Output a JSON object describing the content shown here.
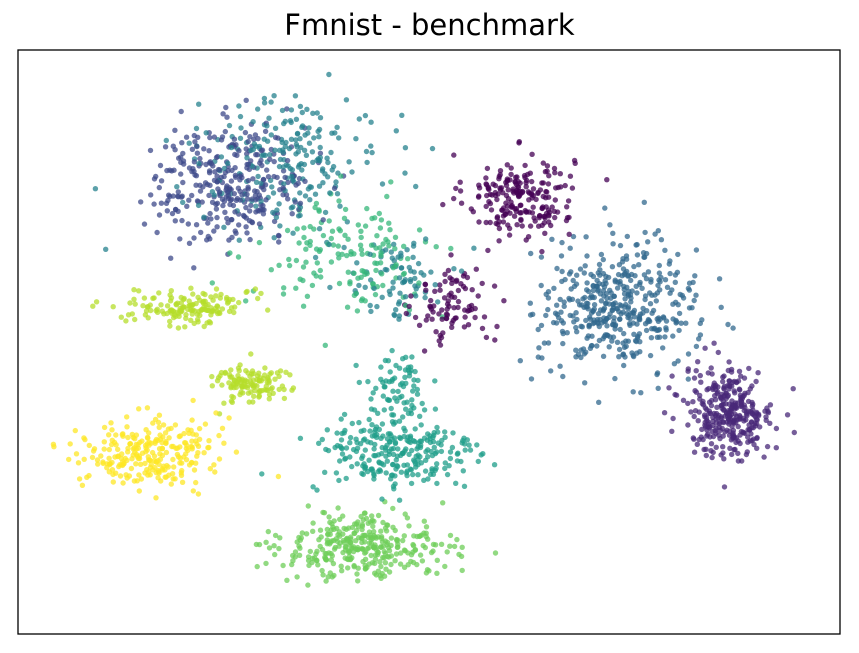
{
  "chart_data": {
    "type": "scatter",
    "title": "Fmnist - benchmark",
    "xlabel": "",
    "ylabel": "",
    "axes_ticks_visible": false,
    "grid": false,
    "legend": "none",
    "xlim": [
      0,
      100
    ],
    "ylim": [
      0,
      100
    ],
    "colormap": "viridis",
    "point_opacity": 0.75,
    "clusters": [
      {
        "class": 0,
        "color": "#440154",
        "center": [
          61,
          75
        ],
        "spread": [
          5.5,
          6.0
        ],
        "count": 210
      },
      {
        "class": 0,
        "color": "#440154",
        "center": [
          53,
          56
        ],
        "spread": [
          4.0,
          5.5
        ],
        "count": 90
      },
      {
        "class": 1,
        "color": "#482878",
        "center": [
          86.5,
          38
        ],
        "spread": [
          4.5,
          6.5
        ],
        "count": 330
      },
      {
        "class": 2,
        "color": "#3e4989",
        "center": [
          26,
          77
        ],
        "spread": [
          8.0,
          8.5
        ],
        "count": 320
      },
      {
        "class": 3,
        "color": "#31688e",
        "center": [
          73,
          56
        ],
        "spread": [
          8.0,
          9.0
        ],
        "count": 430
      },
      {
        "class": 4,
        "color": "#26828e",
        "center": [
          33,
          81
        ],
        "spread": [
          9.5,
          9.0
        ],
        "count": 220
      },
      {
        "class": 4,
        "color": "#26828e",
        "center": [
          46,
          61
        ],
        "spread": [
          5.0,
          6.0
        ],
        "count": 80
      },
      {
        "class": 5,
        "color": "#1f9e89",
        "center": [
          46,
          31
        ],
        "spread": [
          8.5,
          6.0
        ],
        "count": 260
      },
      {
        "class": 5,
        "color": "#1f9e89",
        "center": [
          46,
          42
        ],
        "spread": [
          3.0,
          5.0
        ],
        "count": 70
      },
      {
        "class": 6,
        "color": "#35b779",
        "center": [
          40,
          65
        ],
        "spread": [
          9.0,
          8.0
        ],
        "count": 150
      },
      {
        "class": 7,
        "color": "#6ece58",
        "center": [
          42,
          15
        ],
        "spread": [
          8.5,
          4.5
        ],
        "count": 330
      },
      {
        "class": 8,
        "color": "#b5de2b",
        "center": [
          21,
          56
        ],
        "spread": [
          6.0,
          2.5
        ],
        "count": 150
      },
      {
        "class": 8,
        "color": "#b5de2b",
        "center": [
          28,
          43
        ],
        "spread": [
          3.5,
          3.0
        ],
        "count": 120
      },
      {
        "class": 9,
        "color": "#fde725",
        "center": [
          16,
          31
        ],
        "spread": [
          7.0,
          5.0
        ],
        "count": 260
      }
    ]
  }
}
